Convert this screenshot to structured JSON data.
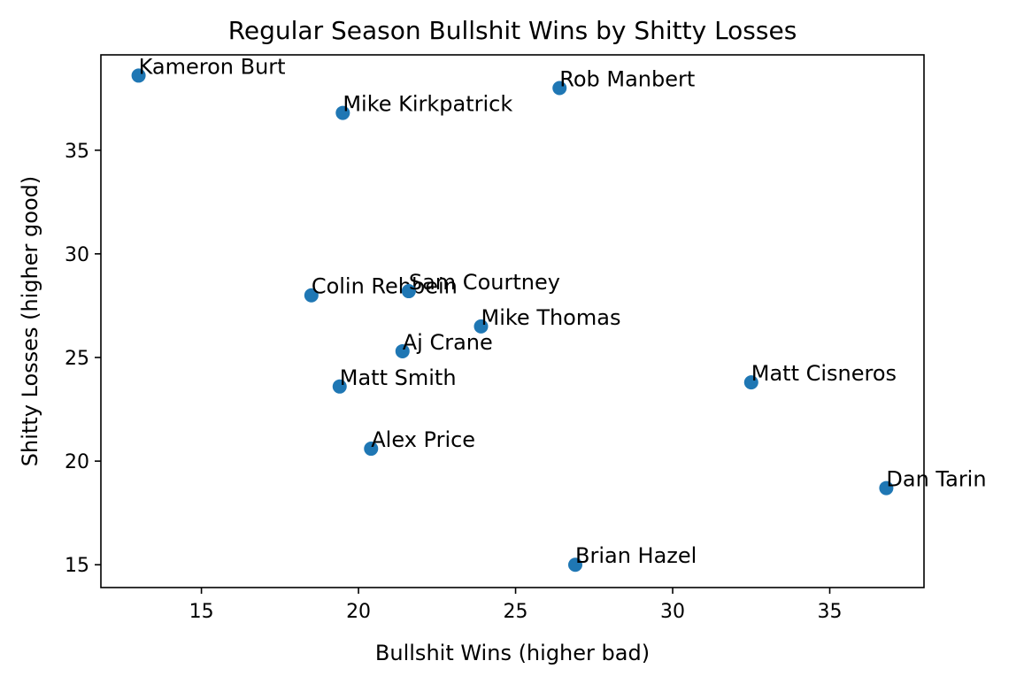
{
  "chart_data": {
    "type": "scatter",
    "title": "Regular Season Bullshit Wins by Shitty Losses",
    "xlabel": "Bullshit Wins (higher bad)",
    "ylabel": "Shitty Losses (higher good)",
    "xlim": [
      11.8,
      38.0
    ],
    "ylim": [
      13.9,
      39.6
    ],
    "x_ticks": [
      15,
      20,
      25,
      30,
      35
    ],
    "y_ticks": [
      15,
      20,
      25,
      30,
      35
    ],
    "grid": false,
    "point_color": "#1f77b4",
    "points": [
      {
        "label": "Kameron Burt",
        "x": 13.0,
        "y": 38.6
      },
      {
        "label": "Rob Manbert",
        "x": 26.4,
        "y": 38.0
      },
      {
        "label": "Mike Kirkpatrick",
        "x": 19.5,
        "y": 36.8
      },
      {
        "label": "Colin Rehbein",
        "x": 18.5,
        "y": 28.0
      },
      {
        "label": "Sam Courtney",
        "x": 21.6,
        "y": 28.2
      },
      {
        "label": "Mike Thomas",
        "x": 23.9,
        "y": 26.5
      },
      {
        "label": "Aj Crane",
        "x": 21.4,
        "y": 25.3
      },
      {
        "label": "Matt Smith",
        "x": 19.4,
        "y": 23.6
      },
      {
        "label": "Matt Cisneros",
        "x": 32.5,
        "y": 23.8
      },
      {
        "label": "Alex Price",
        "x": 20.4,
        "y": 20.6
      },
      {
        "label": "Dan Tarin",
        "x": 36.8,
        "y": 18.7
      },
      {
        "label": "Brian Hazel",
        "x": 26.9,
        "y": 15.0
      }
    ]
  }
}
